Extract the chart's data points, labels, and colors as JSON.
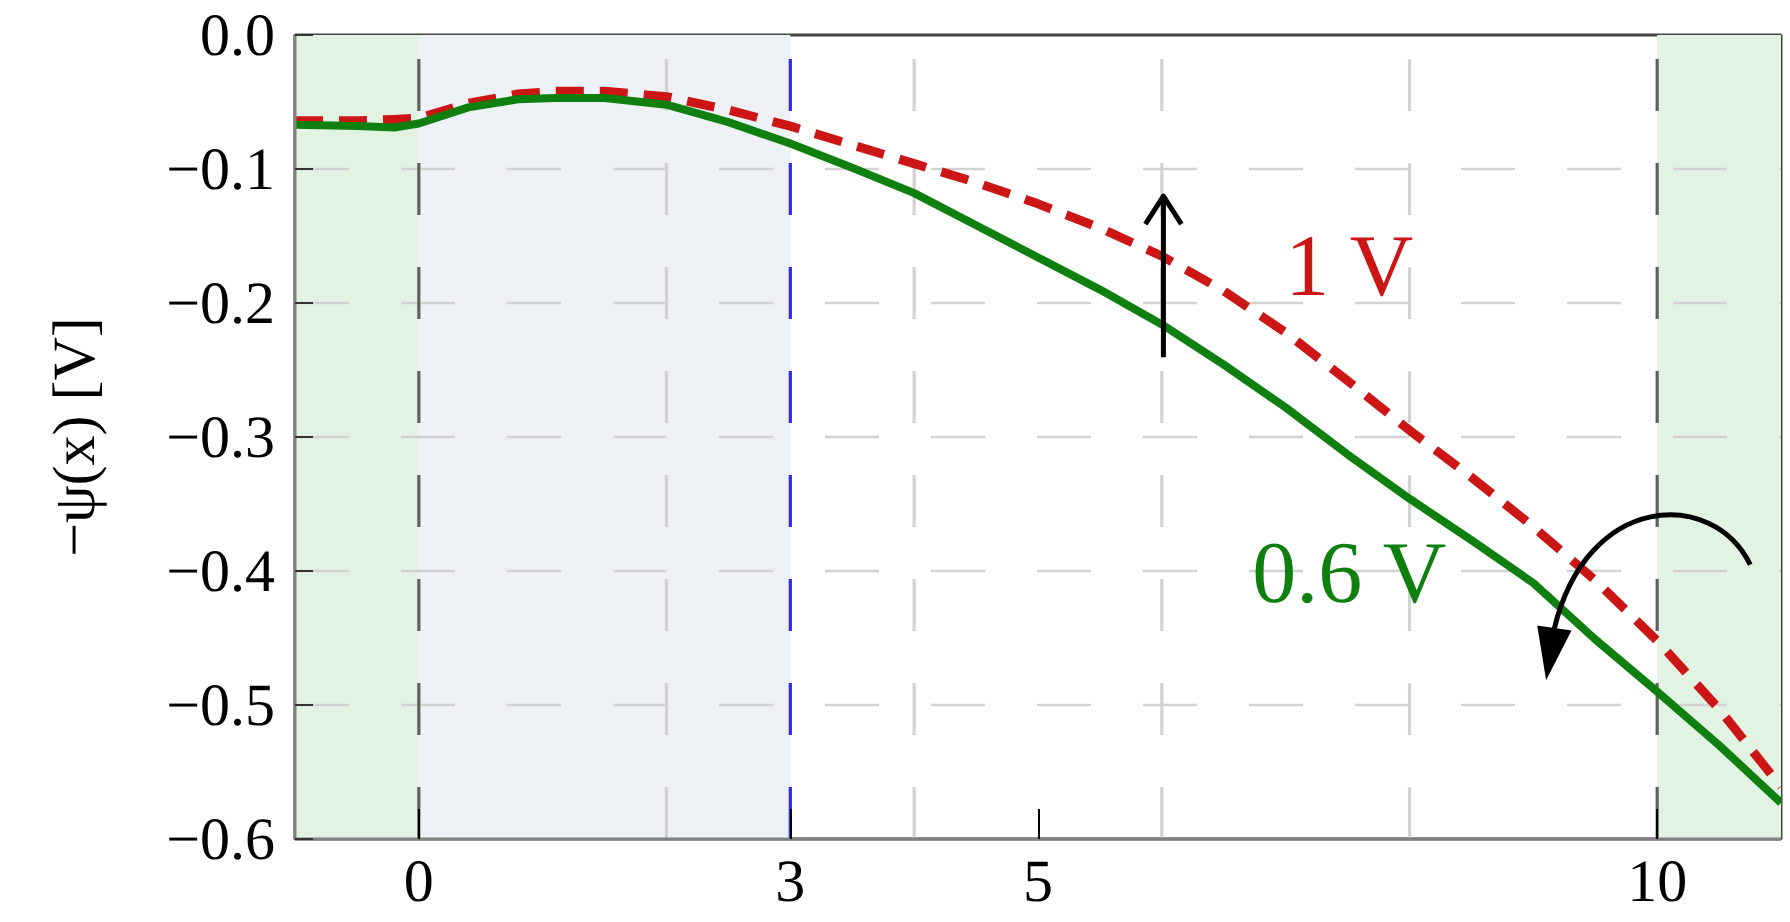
{
  "chart_data": {
    "type": "line",
    "ylabel": "−ψ(x) [V]",
    "x": [
      -1,
      -0.5,
      -0.2,
      0,
      0.4,
      0.8,
      1.1,
      1.5,
      2.0,
      2.5,
      3.0,
      3.5,
      4.0,
      4.5,
      5.0,
      5.5,
      6.0,
      6.5,
      7.0,
      7.5,
      8.0,
      8.5,
      9.0,
      9.5,
      10.0,
      10.5,
      11.0
    ],
    "series": [
      {
        "name": "1 V",
        "color": "#cc1515",
        "line_style": "dashed",
        "values": [
          -0.064,
          -0.064,
          -0.063,
          -0.062,
          -0.051,
          -0.044,
          -0.042,
          -0.042,
          -0.046,
          -0.056,
          -0.068,
          -0.082,
          -0.096,
          -0.11,
          -0.126,
          -0.144,
          -0.165,
          -0.191,
          -0.222,
          -0.258,
          -0.295,
          -0.33,
          -0.367,
          -0.407,
          -0.452,
          -0.503,
          -0.561
        ]
      },
      {
        "name": "0.6 V",
        "color": "#0f800f",
        "line_style": "solid",
        "values": [
          -0.067,
          -0.068,
          -0.069,
          -0.066,
          -0.054,
          -0.048,
          -0.047,
          -0.047,
          -0.052,
          -0.065,
          -0.081,
          -0.099,
          -0.118,
          -0.142,
          -0.166,
          -0.19,
          -0.216,
          -0.246,
          -0.278,
          -0.313,
          -0.346,
          -0.377,
          -0.409,
          -0.451,
          -0.49,
          -0.53,
          -0.573
        ]
      }
    ],
    "xlim": [
      -1,
      11
    ],
    "ylim": [
      -0.6,
      0.0
    ],
    "xticks": [
      0,
      3,
      5,
      10
    ],
    "yticks": [
      {
        "value": -0.6,
        "label": "−0.6"
      },
      {
        "value": -0.5,
        "label": "−0.5"
      },
      {
        "value": -0.4,
        "label": "−0.4"
      },
      {
        "value": -0.3,
        "label": "−0.3"
      },
      {
        "value": -0.2,
        "label": "−0.2"
      },
      {
        "value": -0.1,
        "label": "−0.1"
      },
      {
        "value": 0,
        "label": "0.0"
      }
    ],
    "grid": "y",
    "bands": [
      {
        "axis": "x",
        "from": -1,
        "to": 0,
        "color": "#e3f3e3"
      },
      {
        "axis": "x",
        "from": 0,
        "to": 3,
        "color": "#eef2f6"
      },
      {
        "axis": "x",
        "from": 10,
        "to": 11,
        "color": "#e3f3e3"
      }
    ],
    "ref_lines": [
      {
        "axis": "x",
        "value": 0,
        "color": "#606060",
        "line_style": "dashed"
      },
      {
        "axis": "x",
        "value": 2,
        "color": "#d2d2d2",
        "line_style": "dashed"
      },
      {
        "axis": "x",
        "value": 3,
        "color": "#2a2aff",
        "line_style": "dashed"
      },
      {
        "axis": "x",
        "value": 4,
        "color": "#d2d2d2",
        "line_style": "dashed"
      },
      {
        "axis": "x",
        "value": 6,
        "color": "#d2d2d2",
        "line_style": "dashed"
      },
      {
        "axis": "x",
        "value": 8,
        "color": "#d2d2d2",
        "line_style": "dashed"
      },
      {
        "axis": "x",
        "value": 10,
        "color": "#606060",
        "line_style": "dashed"
      }
    ]
  }
}
